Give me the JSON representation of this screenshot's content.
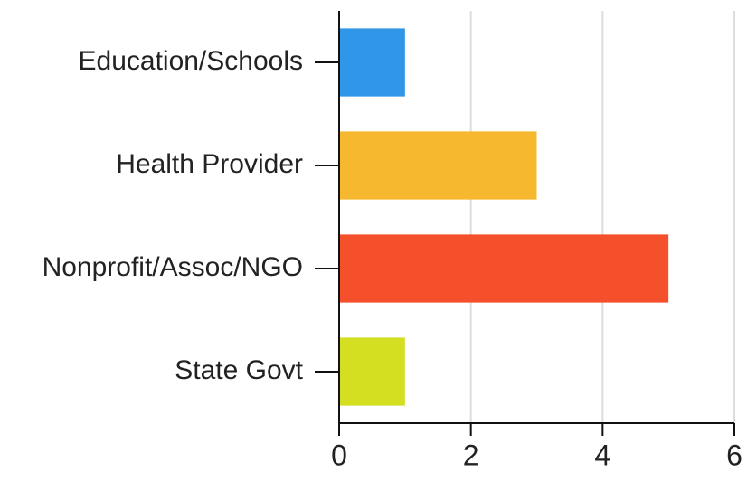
{
  "chart_data": {
    "type": "bar",
    "orientation": "horizontal",
    "categories": [
      "Education/Schools",
      "Health Provider",
      "Nonprofit/Assoc/NGO",
      "State Govt"
    ],
    "values": [
      1,
      3,
      5,
      1
    ],
    "colors": [
      "#2f96e8",
      "#f5b82e",
      "#f4502c",
      "#d5df22"
    ],
    "xlim": [
      0,
      6
    ],
    "xticks": [
      0,
      2,
      4,
      6
    ],
    "grid": true
  }
}
